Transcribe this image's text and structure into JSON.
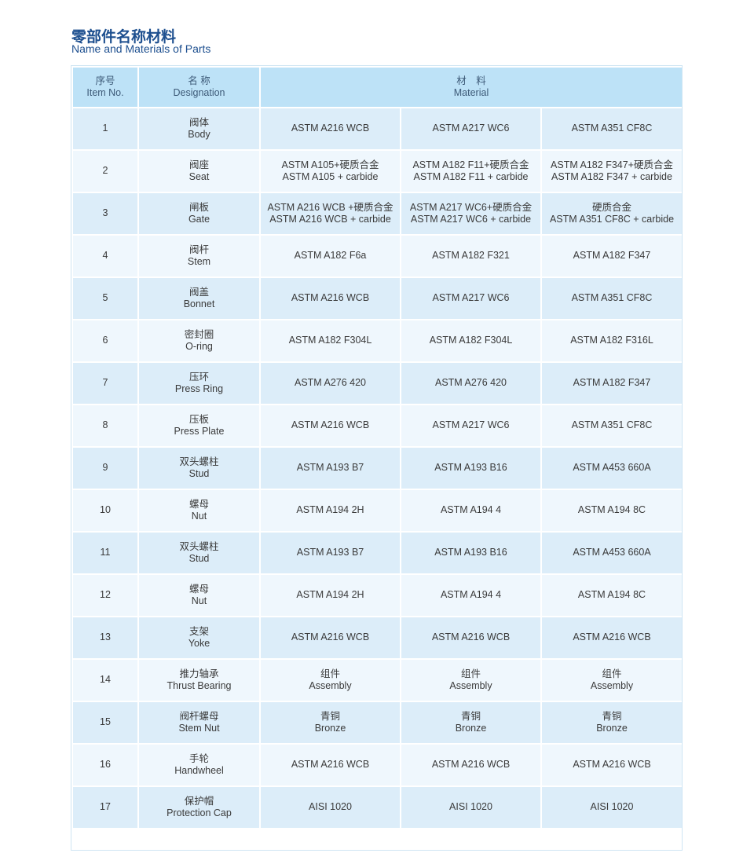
{
  "title": {
    "cn": "零部件名称材料",
    "en": "Name and Materials of Parts"
  },
  "header": {
    "item_no": "序号\nItem No.",
    "designation": "名 称\nDesignation",
    "material": "材　料\nMaterial"
  },
  "colors": {
    "title": "#1d4f8f",
    "header_bg": "#bde2f7",
    "row_odd": "#dcedf9",
    "row_even": "#eff7fd"
  },
  "rows": [
    {
      "no": "1",
      "name": "阀体\nBody",
      "m": [
        "ASTM A216 WCB",
        "ASTM A217 WC6",
        "ASTM A351 CF8C"
      ]
    },
    {
      "no": "2",
      "name": "阀座\nSeat",
      "m": [
        "ASTM A105+硬质合金\nASTM A105 + carbide",
        "ASTM A182 F11+硬质合金\nASTM A182 F11 + carbide",
        "ASTM A182 F347+硬质合金\nASTM A182 F347 + carbide"
      ]
    },
    {
      "no": "3",
      "name": "闸板\nGate",
      "m": [
        "ASTM A216 WCB +硬质合金\nASTM A216 WCB + carbide",
        "ASTM A217 WC6+硬质合金\nASTM A217 WC6 + carbide",
        "硬质合金\nASTM A351 CF8C + carbide"
      ]
    },
    {
      "no": "4",
      "name": "阀杆\nStem",
      "m": [
        "ASTM A182 F6a",
        "ASTM A182 F321",
        "ASTM A182 F347"
      ]
    },
    {
      "no": "5",
      "name": "阀盖\nBonnet",
      "m": [
        "ASTM A216 WCB",
        "ASTM A217 WC6",
        "ASTM A351 CF8C"
      ]
    },
    {
      "no": "6",
      "name": "密封圈\nO-ring",
      "m": [
        "ASTM A182 F304L",
        "ASTM A182 F304L",
        "ASTM A182 F316L"
      ]
    },
    {
      "no": "7",
      "name": "压环\nPress Ring",
      "m": [
        "ASTM A276 420",
        "ASTM A276 420",
        "ASTM A182 F347"
      ]
    },
    {
      "no": "8",
      "name": "压板\nPress Plate",
      "m": [
        "ASTM A216 WCB",
        "ASTM A217 WC6",
        "ASTM A351 CF8C"
      ]
    },
    {
      "no": "9",
      "name": "双头螺柱\nStud",
      "m": [
        "ASTM A193 B7",
        "ASTM A193 B16",
        "ASTM A453 660A"
      ]
    },
    {
      "no": "10",
      "name": "螺母\nNut",
      "m": [
        "ASTM A194 2H",
        "ASTM A194 4",
        "ASTM A194 8C"
      ]
    },
    {
      "no": "11",
      "name": "双头螺柱\nStud",
      "m": [
        "ASTM A193 B7",
        "ASTM A193 B16",
        "ASTM A453 660A"
      ]
    },
    {
      "no": "12",
      "name": "螺母\nNut",
      "m": [
        "ASTM A194 2H",
        "ASTM A194 4",
        "ASTM A194 8C"
      ]
    },
    {
      "no": "13",
      "name": "支架\nYoke",
      "m": [
        "ASTM A216 WCB",
        "ASTM A216 WCB",
        "ASTM A216 WCB"
      ]
    },
    {
      "no": "14",
      "name": "推力轴承\nThrust Bearing",
      "m": [
        "组件\nAssembly",
        "组件\nAssembly",
        "组件\nAssembly"
      ]
    },
    {
      "no": "15",
      "name": "阀杆螺母\nStem Nut",
      "m": [
        "青铜\nBronze",
        "青铜\nBronze",
        "青铜\nBronze"
      ]
    },
    {
      "no": "16",
      "name": "手轮\nHandwheel",
      "m": [
        "ASTM A216 WCB",
        "ASTM A216 WCB",
        "ASTM A216 WCB"
      ]
    },
    {
      "no": "17",
      "name": "保护帽\nProtection Cap",
      "m": [
        "AISI 1020",
        "AISI 1020",
        "AISI 1020"
      ]
    }
  ]
}
